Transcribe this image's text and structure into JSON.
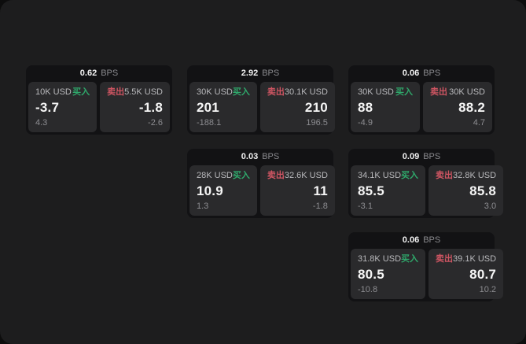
{
  "labels": {
    "bps_unit": "BPS",
    "buy": "买入",
    "sell": "卖出"
  },
  "colors": {
    "surface_bg": "#1d1d1e",
    "card_bg": "#121214",
    "panel_bg": "#2a2a2c",
    "buy_green": "#2fa86b",
    "sell_red": "#ce5562"
  },
  "cards": [
    {
      "bps_value": "0.62",
      "grid": {
        "row": 1,
        "col": 1
      },
      "buy": {
        "amount": "10K USD",
        "value": "-3.7",
        "delta": "4.3"
      },
      "sell": {
        "amount": "5.5K USD",
        "value": "-1.8",
        "delta": "-2.6"
      }
    },
    {
      "bps_value": "2.92",
      "grid": {
        "row": 1,
        "col": 2
      },
      "buy": {
        "amount": "30K USD",
        "value": "201",
        "delta": "-188.1"
      },
      "sell": {
        "amount": "30.1K USD",
        "value": "210",
        "delta": "196.5"
      }
    },
    {
      "bps_value": "0.06",
      "grid": {
        "row": 1,
        "col": 3
      },
      "buy": {
        "amount": "30K USD",
        "value": "88",
        "delta": "-4.9"
      },
      "sell": {
        "amount": "30K USD",
        "value": "88.2",
        "delta": "4.7"
      }
    },
    {
      "bps_value": "0.03",
      "grid": {
        "row": 2,
        "col": 2
      },
      "buy": {
        "amount": "28K USD",
        "value": "10.9",
        "delta": "1.3"
      },
      "sell": {
        "amount": "32.6K USD",
        "value": "11",
        "delta": "-1.8"
      }
    },
    {
      "bps_value": "0.09",
      "grid": {
        "row": 2,
        "col": 3
      },
      "buy": {
        "amount": "34.1K USD",
        "value": "85.5",
        "delta": "-3.1"
      },
      "sell": {
        "amount": "32.8K USD",
        "value": "85.8",
        "delta": "3.0"
      }
    },
    {
      "bps_value": "0.06",
      "grid": {
        "row": 3,
        "col": 3
      },
      "buy": {
        "amount": "31.8K USD",
        "value": "80.5",
        "delta": "-10.8"
      },
      "sell": {
        "amount": "39.1K USD",
        "value": "80.7",
        "delta": "10.2"
      }
    }
  ]
}
